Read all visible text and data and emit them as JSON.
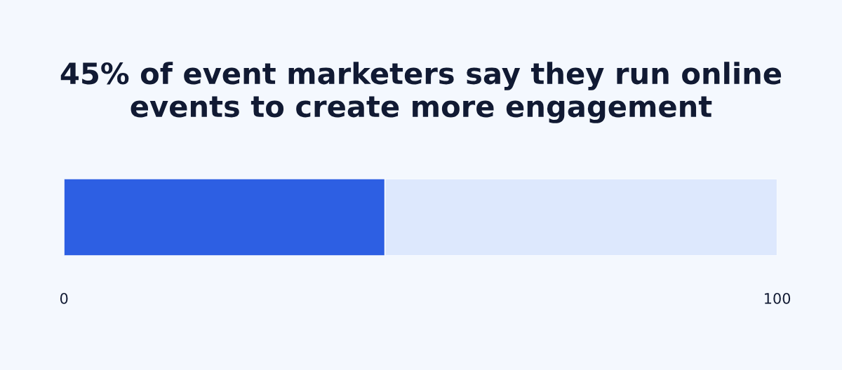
{
  "chart_data": {
    "type": "bar",
    "title": "45% of event marketers say they run online events to create more engagement",
    "orientation": "horizontal",
    "stacked": true,
    "categories": [
      null
    ],
    "series": [
      {
        "color": "#2d5fe3",
        "values": [
          45
        ]
      },
      {
        "color": "#dde8fd",
        "values": [
          55
        ]
      }
    ],
    "xlim": [
      0,
      100
    ],
    "xticks": [
      0,
      100
    ],
    "tick_labels": "x"
  }
}
